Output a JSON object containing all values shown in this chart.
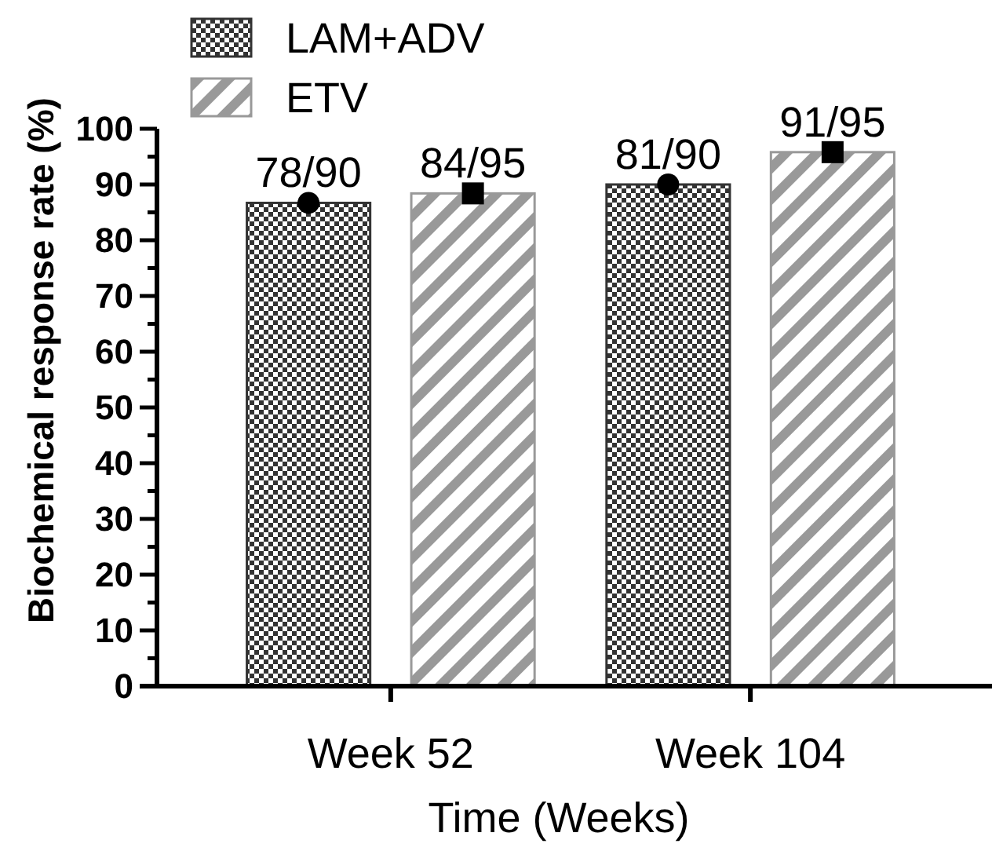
{
  "chart_data": {
    "type": "bar",
    "xlabel": "Time (Weeks)",
    "ylabel": "Biochemical response rate (%)",
    "categories": [
      "Week 52",
      "Week 104"
    ],
    "series": [
      {
        "name": "LAM+ADV",
        "color": "#333333",
        "values": [
          86.7,
          90
        ],
        "value_labels": [
          "78/90",
          "81/90"
        ]
      },
      {
        "name": "ETV",
        "color": "#999999",
        "values": [
          88.4,
          95.8
        ],
        "value_labels": [
          "84/95",
          "91/95"
        ]
      },
      {
        "type": "scatter",
        "x": [
          "Week 52",
          "Week 104"
        ],
        "color": "#000000",
        "marker": "circle",
        "values": [
          86.7,
          90
        ]
      },
      {
        "type": "scatter",
        "x": [
          "Week 52",
          "Week 104"
        ],
        "color": "#000000",
        "marker": "square",
        "values": [
          88.4,
          95.8
        ]
      }
    ],
    "ylim": [
      0,
      100
    ],
    "yticks": [
      0,
      {
        "value": 5,
        "label": null
      },
      10,
      {
        "value": 15,
        "label": null
      },
      20,
      {
        "value": 25,
        "label": null
      },
      30,
      {
        "value": 35,
        "label": null
      },
      40,
      {
        "value": 45,
        "label": null
      },
      50,
      {
        "value": 55,
        "label": null
      },
      60,
      {
        "value": 65,
        "label": null
      },
      70,
      {
        "value": 75,
        "label": null
      },
      80,
      {
        "value": 85,
        "label": null
      },
      90,
      {
        "value": 95,
        "label": null
      },
      100
    ],
    "grid": false,
    "legend": "top left"
  }
}
